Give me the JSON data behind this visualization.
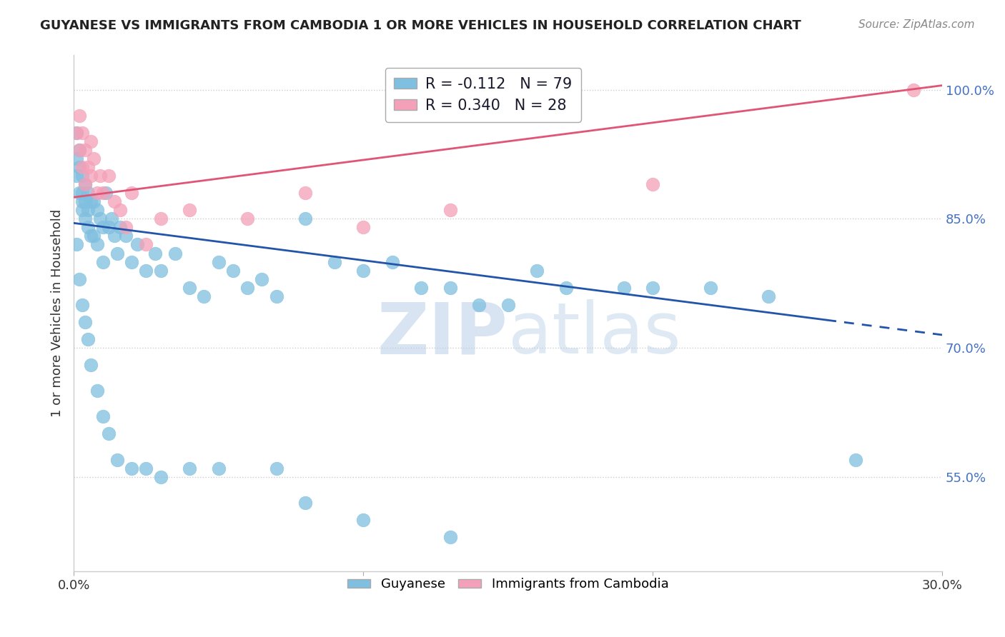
{
  "title": "GUYANESE VS IMMIGRANTS FROM CAMBODIA 1 OR MORE VEHICLES IN HOUSEHOLD CORRELATION CHART",
  "source": "Source: ZipAtlas.com",
  "ylabel": "1 or more Vehicles in Household",
  "xlabel": "",
  "xmin": 0.0,
  "xmax": 0.3,
  "ymin": 0.44,
  "ymax": 1.04,
  "yticks": [
    0.55,
    0.7,
    0.85,
    1.0
  ],
  "ytick_labels": [
    "55.0%",
    "70.0%",
    "85.0%",
    "100.0%"
  ],
  "xticks": [
    0.0,
    0.1,
    0.2,
    0.3
  ],
  "xtick_labels": [
    "0.0%",
    "",
    "",
    "30.0%"
  ],
  "background_color": "#ffffff",
  "grid_color": "#cccccc",
  "blue_color": "#7fbfdf",
  "pink_color": "#f4a0b8",
  "blue_line_color": "#2255aa",
  "pink_line_color": "#e05575",
  "legend_r_blue": "-0.112",
  "legend_n_blue": "79",
  "legend_r_pink": "0.340",
  "legend_n_pink": "28",
  "watermark_text": "ZIPatlas",
  "watermark_color": "#c8d8ec",
  "blue_r": -0.112,
  "pink_r": 0.34,
  "blue_line_x0": 0.0,
  "blue_line_x1": 0.3,
  "blue_line_y0": 0.845,
  "blue_line_y1": 0.715,
  "blue_line_solid_x1": 0.26,
  "pink_line_x0": 0.0,
  "pink_line_x1": 0.3,
  "pink_line_y0": 0.875,
  "pink_line_y1": 1.005,
  "blue_x": [
    0.001,
    0.001,
    0.001,
    0.002,
    0.002,
    0.002,
    0.003,
    0.003,
    0.003,
    0.003,
    0.004,
    0.004,
    0.004,
    0.005,
    0.005,
    0.005,
    0.006,
    0.006,
    0.007,
    0.007,
    0.008,
    0.008,
    0.009,
    0.01,
    0.01,
    0.011,
    0.012,
    0.013,
    0.014,
    0.015,
    0.016,
    0.018,
    0.02,
    0.022,
    0.025,
    0.028,
    0.03,
    0.035,
    0.04,
    0.045,
    0.05,
    0.055,
    0.06,
    0.065,
    0.07,
    0.08,
    0.09,
    0.1,
    0.11,
    0.12,
    0.13,
    0.14,
    0.15,
    0.16,
    0.17,
    0.19,
    0.2,
    0.22,
    0.24,
    0.27,
    0.001,
    0.002,
    0.003,
    0.004,
    0.005,
    0.006,
    0.008,
    0.01,
    0.012,
    0.015,
    0.02,
    0.025,
    0.03,
    0.04,
    0.05,
    0.07,
    0.08,
    0.1,
    0.13
  ],
  "blue_y": [
    0.95,
    0.92,
    0.9,
    0.93,
    0.91,
    0.88,
    0.9,
    0.88,
    0.87,
    0.86,
    0.89,
    0.87,
    0.85,
    0.88,
    0.86,
    0.84,
    0.87,
    0.83,
    0.87,
    0.83,
    0.86,
    0.82,
    0.85,
    0.84,
    0.8,
    0.88,
    0.84,
    0.85,
    0.83,
    0.81,
    0.84,
    0.83,
    0.8,
    0.82,
    0.79,
    0.81,
    0.79,
    0.81,
    0.77,
    0.76,
    0.8,
    0.79,
    0.77,
    0.78,
    0.76,
    0.85,
    0.8,
    0.79,
    0.8,
    0.77,
    0.77,
    0.75,
    0.75,
    0.79,
    0.77,
    0.77,
    0.77,
    0.77,
    0.76,
    0.57,
    0.82,
    0.78,
    0.75,
    0.73,
    0.71,
    0.68,
    0.65,
    0.62,
    0.6,
    0.57,
    0.56,
    0.56,
    0.55,
    0.56,
    0.56,
    0.56,
    0.52,
    0.5,
    0.48
  ],
  "pink_x": [
    0.001,
    0.002,
    0.002,
    0.003,
    0.003,
    0.004,
    0.004,
    0.005,
    0.006,
    0.006,
    0.007,
    0.008,
    0.009,
    0.01,
    0.012,
    0.014,
    0.016,
    0.018,
    0.02,
    0.025,
    0.03,
    0.04,
    0.06,
    0.08,
    0.1,
    0.13,
    0.2,
    0.29
  ],
  "pink_y": [
    0.95,
    0.97,
    0.93,
    0.95,
    0.91,
    0.93,
    0.89,
    0.91,
    0.94,
    0.9,
    0.92,
    0.88,
    0.9,
    0.88,
    0.9,
    0.87,
    0.86,
    0.84,
    0.88,
    0.82,
    0.85,
    0.86,
    0.85,
    0.88,
    0.84,
    0.86,
    0.89,
    1.0
  ]
}
